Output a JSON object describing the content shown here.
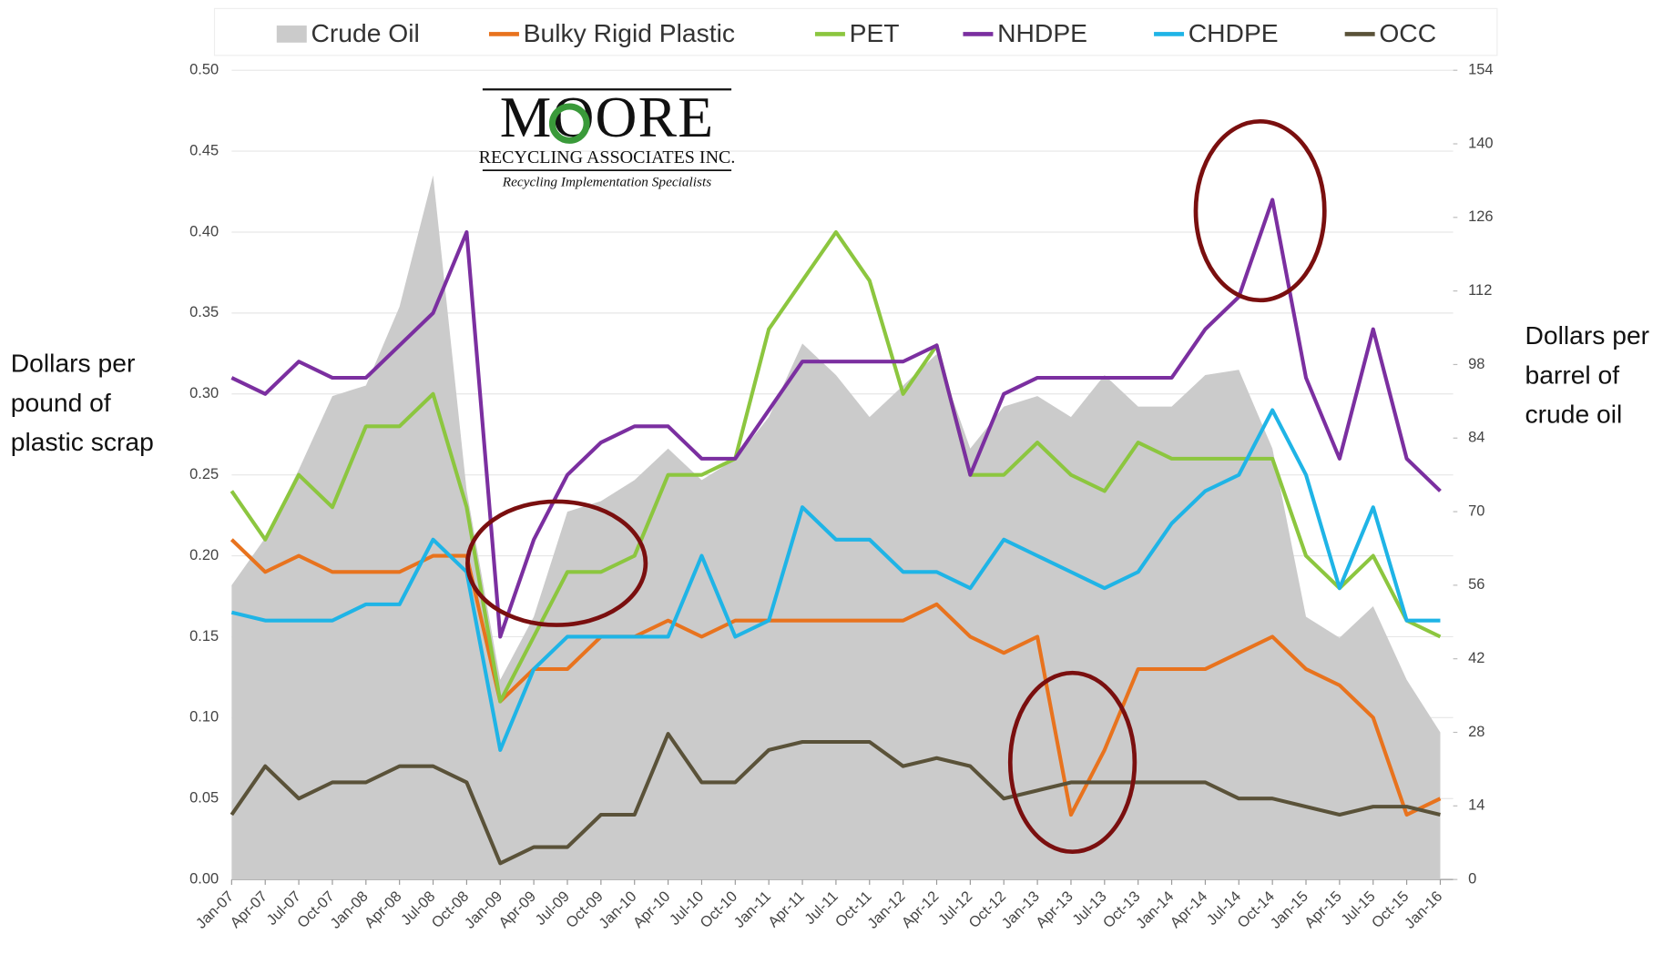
{
  "chart_data": {
    "type": "line",
    "categories": [
      "Jan-07",
      "Apr-07",
      "Jul-07",
      "Oct-07",
      "Jan-08",
      "Apr-08",
      "Jul-08",
      "Oct-08",
      "Jan-09",
      "Apr-09",
      "Jul-09",
      "Oct-09",
      "Jan-10",
      "Apr-10",
      "Jul-10",
      "Oct-10",
      "Jan-11",
      "Apr-11",
      "Jul-11",
      "Oct-11",
      "Jan-12",
      "Apr-12",
      "Jul-12",
      "Oct-12",
      "Jan-13",
      "Apr-13",
      "Jul-13",
      "Oct-13",
      "Jan-14",
      "Apr-14",
      "Jul-14",
      "Oct-14",
      "Jan-15",
      "Apr-15",
      "Jul-15",
      "Oct-15",
      "Jan-16"
    ],
    "ylabel": [
      "Dollars per",
      "pound of",
      "plastic scrap"
    ],
    "y2label": [
      "Dollars per",
      "barrel of",
      "crude oil"
    ],
    "ylim": [
      0,
      0.5
    ],
    "yticks": [
      {
        "value": 0,
        "label": "0.00"
      },
      {
        "value": 0.05,
        "label": "0.05"
      },
      {
        "value": 0.1,
        "label": "0.10"
      },
      {
        "value": 0.15,
        "label": "0.15"
      },
      {
        "value": 0.2,
        "label": "0.20"
      },
      {
        "value": 0.25,
        "label": "0.25"
      },
      {
        "value": 0.3,
        "label": "0.30"
      },
      {
        "value": 0.35,
        "label": "0.35"
      },
      {
        "value": 0.4,
        "label": "0.40"
      },
      {
        "value": 0.45,
        "label": "0.45"
      },
      {
        "value": 0.5,
        "label": "0.50"
      }
    ],
    "y2lim": [
      0,
      154
    ],
    "y2ticks": [
      0,
      14,
      28,
      42,
      56,
      70,
      84,
      98,
      112,
      126,
      140,
      154
    ],
    "grid": true,
    "legend": "top",
    "logo": {
      "name": "MOORE",
      "company": "RECYCLING ASSOCIATES INC.",
      "tagline": "Recycling Implementation Specialists"
    },
    "series": [
      {
        "name": "Crude Oil",
        "type": "area",
        "axis": "y2",
        "color": "#cbcbcb",
        "values": [
          56,
          65,
          78,
          92,
          94,
          109,
          134,
          74,
          38,
          50,
          70,
          72,
          76,
          82,
          76,
          80,
          88,
          102,
          96,
          88,
          94,
          100,
          82,
          90,
          92,
          88,
          96,
          90,
          90,
          96,
          97,
          82,
          50,
          46,
          52,
          38,
          28
        ]
      },
      {
        "name": "Bulky Rigid Plastic",
        "color": "#e8731e",
        "values": [
          0.21,
          0.19,
          0.2,
          0.19,
          0.19,
          0.19,
          0.2,
          0.2,
          0.11,
          0.13,
          0.13,
          0.15,
          0.15,
          0.16,
          0.15,
          0.16,
          0.16,
          0.16,
          0.16,
          0.16,
          0.16,
          0.17,
          0.15,
          0.14,
          0.15,
          0.04,
          0.08,
          0.13,
          0.13,
          0.13,
          0.14,
          0.15,
          0.13,
          0.12,
          0.1,
          0.04,
          0.05
        ]
      },
      {
        "name": "PET",
        "color": "#8cc63f",
        "values": [
          0.24,
          0.21,
          0.25,
          0.23,
          0.28,
          0.28,
          0.3,
          0.23,
          0.11,
          0.15,
          0.19,
          0.19,
          0.2,
          0.25,
          0.25,
          0.26,
          0.34,
          0.37,
          0.4,
          0.37,
          0.3,
          0.33,
          0.25,
          0.25,
          0.27,
          0.25,
          0.24,
          0.27,
          0.26,
          0.26,
          0.26,
          0.26,
          0.2,
          0.18,
          0.2,
          0.16,
          0.15
        ]
      },
      {
        "name": "NHDPE",
        "color": "#7b2fa0",
        "values": [
          0.31,
          0.3,
          0.32,
          0.31,
          0.31,
          0.33,
          0.35,
          0.4,
          0.15,
          0.21,
          0.25,
          0.27,
          0.28,
          0.28,
          0.26,
          0.26,
          0.29,
          0.32,
          0.32,
          0.32,
          0.32,
          0.33,
          0.25,
          0.3,
          0.31,
          0.31,
          0.31,
          0.31,
          0.31,
          0.34,
          0.36,
          0.42,
          0.31,
          0.26,
          0.34,
          0.26,
          0.24
        ]
      },
      {
        "name": "CHDPE",
        "color": "#1fb4e6",
        "values": [
          0.165,
          0.16,
          0.16,
          0.16,
          0.17,
          0.17,
          0.21,
          0.19,
          0.08,
          0.13,
          0.15,
          0.15,
          0.15,
          0.15,
          0.2,
          0.15,
          0.16,
          0.23,
          0.21,
          0.21,
          0.19,
          0.19,
          0.18,
          0.21,
          0.2,
          0.19,
          0.18,
          0.19,
          0.22,
          0.24,
          0.25,
          0.29,
          0.25,
          0.18,
          0.23,
          0.16,
          0.16
        ]
      },
      {
        "name": "OCC",
        "color": "#5a5239",
        "values": [
          0.04,
          0.07,
          0.05,
          0.06,
          0.06,
          0.07,
          0.07,
          0.06,
          0.01,
          0.02,
          0.02,
          0.04,
          0.04,
          0.09,
          0.06,
          0.06,
          0.08,
          0.085,
          0.085,
          0.085,
          0.07,
          0.075,
          0.07,
          0.05,
          0.055,
          0.06,
          0.06,
          0.06,
          0.06,
          0.06,
          0.05,
          0.05,
          0.045,
          0.04,
          0.045,
          0.045,
          0.04
        ]
      }
    ]
  }
}
